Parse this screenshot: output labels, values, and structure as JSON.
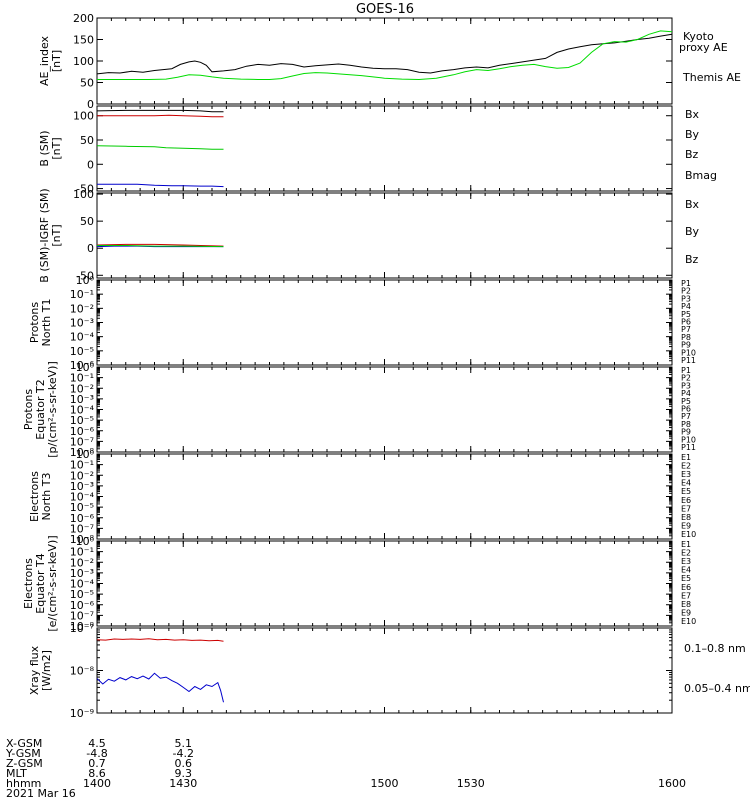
{
  "title": "GOES-16",
  "chart_data": [
    {
      "id": "ae",
      "type": "line",
      "ylabel": [
        "AE_index",
        "[nT]"
      ],
      "yscale": "linear",
      "ylim": [
        0,
        200
      ],
      "yticks": [
        "0",
        "50",
        "100",
        "150",
        "200"
      ],
      "xlim": [
        1400,
        1600
      ],
      "legend": [
        {
          "text": "Kyoto",
          "color": "#00dd00"
        },
        {
          "text": "proxy AE",
          "color": "#00dd00"
        },
        {
          "text": "Themis AE",
          "color": "#000000"
        }
      ],
      "series": [
        {
          "color": "#000000",
          "x": [
            1400,
            1404,
            1408,
            1412,
            1416,
            1420,
            1423,
            1426,
            1429,
            1432,
            1434,
            1436,
            1438,
            1440,
            1444,
            1448,
            1452,
            1456,
            1460,
            1464,
            1468,
            1472,
            1476,
            1480,
            1484,
            1488,
            1492,
            1496,
            1500,
            1504,
            1508,
            1512,
            1516,
            1520,
            1524,
            1528,
            1532,
            1536,
            1540,
            1544,
            1548,
            1552,
            1556,
            1560,
            1564,
            1568,
            1572,
            1576,
            1580,
            1584,
            1588,
            1592,
            1596,
            1600
          ],
          "y": [
            70,
            73,
            72,
            76,
            74,
            78,
            80,
            82,
            92,
            98,
            100,
            97,
            90,
            75,
            77,
            80,
            88,
            92,
            90,
            94,
            92,
            86,
            89,
            91,
            93,
            90,
            86,
            83,
            82,
            82,
            80,
            74,
            72,
            77,
            80,
            84,
            86,
            84,
            90,
            94,
            98,
            102,
            106,
            120,
            128,
            133,
            138,
            140,
            142,
            146,
            150,
            153,
            158,
            162
          ]
        },
        {
          "color": "#00dd00",
          "x": [
            1400,
            1406,
            1412,
            1418,
            1424,
            1428,
            1432,
            1436,
            1440,
            1444,
            1450,
            1456,
            1460,
            1464,
            1468,
            1472,
            1476,
            1480,
            1484,
            1488,
            1492,
            1496,
            1500,
            1506,
            1512,
            1518,
            1524,
            1528,
            1532,
            1536,
            1540,
            1544,
            1548,
            1552,
            1556,
            1560,
            1564,
            1568,
            1572,
            1576,
            1580,
            1584,
            1588,
            1592,
            1596,
            1600
          ],
          "y": [
            57,
            57,
            57,
            57,
            58,
            62,
            68,
            67,
            63,
            60,
            58,
            57,
            57,
            59,
            65,
            71,
            73,
            72,
            70,
            68,
            66,
            63,
            60,
            58,
            57,
            60,
            68,
            75,
            80,
            78,
            82,
            87,
            90,
            92,
            87,
            83,
            85,
            95,
            120,
            140,
            145,
            144,
            150,
            162,
            170,
            168
          ]
        }
      ]
    },
    {
      "id": "bsm",
      "type": "line",
      "ylabel": [
        "B (SM)",
        "[nT]"
      ],
      "yscale": "linear",
      "ylim": [
        -55,
        120
      ],
      "yticks": [
        "-50",
        "0",
        "50",
        "100"
      ],
      "xlim": [
        1400,
        1600
      ],
      "legend": [
        {
          "text": "Bx",
          "color": "#0000cc"
        },
        {
          "text": "By",
          "color": "#00cc00"
        },
        {
          "text": "Bz",
          "color": "#cc0000"
        },
        {
          "text": "Bmag",
          "color": "#000000"
        }
      ],
      "series": [
        {
          "color": "#000000",
          "x": [
            1400,
            1410,
            1420,
            1430,
            1436,
            1440,
            1444
          ],
          "y": [
            110,
            111,
            111,
            111,
            110,
            108,
            108
          ]
        },
        {
          "color": "#cc0000",
          "x": [
            1400,
            1410,
            1420,
            1425,
            1430,
            1436,
            1440,
            1444
          ],
          "y": [
            100,
            100,
            100,
            101,
            100,
            99,
            98,
            98
          ]
        },
        {
          "color": "#00cc00",
          "x": [
            1400,
            1410,
            1420,
            1424,
            1430,
            1436,
            1440,
            1444
          ],
          "y": [
            38,
            37,
            36,
            34,
            33,
            32,
            31,
            31
          ]
        },
        {
          "color": "#0000cc",
          "x": [
            1400,
            1410,
            1414,
            1420,
            1426,
            1430,
            1436,
            1440,
            1444
          ],
          "y": [
            -41,
            -41,
            -41,
            -43,
            -44,
            -44,
            -45,
            -45,
            -46
          ]
        }
      ]
    },
    {
      "id": "bigrf",
      "type": "line",
      "ylabel": [
        "B (SM)-IGRF (SM)",
        "[nT]"
      ],
      "yscale": "linear",
      "ylim": [
        -55,
        102
      ],
      "yticks": [
        "-50",
        "0",
        "50",
        "100"
      ],
      "xlim": [
        1400,
        1600
      ],
      "legend": [
        {
          "text": "Bx",
          "color": "#0000cc"
        },
        {
          "text": "By",
          "color": "#00cc00"
        },
        {
          "text": "Bz",
          "color": "#cc0000"
        }
      ],
      "series": [
        {
          "color": "#cc0000",
          "x": [
            1400,
            1410,
            1420,
            1430,
            1436,
            1444
          ],
          "y": [
            6,
            7,
            7,
            6,
            5,
            4
          ]
        },
        {
          "color": "#0000cc",
          "x": [
            1400,
            1406,
            1414,
            1420,
            1430,
            1444
          ],
          "y": [
            3,
            4,
            4,
            3,
            3,
            3
          ]
        },
        {
          "color": "#00cc00",
          "x": [
            1400,
            1410,
            1420,
            1430,
            1444
          ],
          "y": [
            5,
            5,
            4,
            4,
            3
          ]
        }
      ]
    },
    {
      "id": "prot_t1",
      "type": "line",
      "ylabel": [
        "Protons",
        "North T1"
      ],
      "yscale": "log",
      "ylim": [
        -6,
        0
      ],
      "yticks": [
        "10⁻⁶",
        "10⁻⁵",
        "10⁻⁴",
        "10⁻³",
        "10⁻²",
        "10⁻¹",
        "10⁰"
      ],
      "xlim": [
        1400,
        1600
      ],
      "legend": [
        {
          "text": "P1",
          "color": "#000000"
        },
        {
          "text": "P2",
          "color": "#660088"
        },
        {
          "text": "P3",
          "color": "#0000cc"
        },
        {
          "text": "P4",
          "color": "#0088ff"
        },
        {
          "text": "P5",
          "color": "#00cccc"
        },
        {
          "text": "P6",
          "color": "#00bb00"
        },
        {
          "text": "P7",
          "color": "#dddd00"
        },
        {
          "text": "P8",
          "color": "#ffcc00"
        },
        {
          "text": "P9",
          "color": "#ff8800"
        },
        {
          "text": "P10",
          "color": "#ee0000"
        },
        {
          "text": "P11",
          "color": "#aa0000"
        }
      ],
      "series": []
    },
    {
      "id": "prot_t2",
      "type": "line",
      "ylabel": [
        "Protons",
        "Equator T2",
        "[p/(cm²-s-sr-keV)]"
      ],
      "yscale": "log",
      "ylim": [
        -8,
        0
      ],
      "yticks": [
        "10⁻⁸",
        "10⁻⁷",
        "10⁻⁶",
        "10⁻⁵",
        "10⁻⁴",
        "10⁻³",
        "10⁻²",
        "10⁻¹",
        "10⁰"
      ],
      "xlim": [
        1400,
        1600
      ],
      "legend": [
        {
          "text": "P1",
          "color": "#000000"
        },
        {
          "text": "P2",
          "color": "#660088"
        },
        {
          "text": "P3",
          "color": "#0000cc"
        },
        {
          "text": "P4",
          "color": "#0088ff"
        },
        {
          "text": "P5",
          "color": "#00cccc"
        },
        {
          "text": "P6",
          "color": "#00bb00"
        },
        {
          "text": "P7",
          "color": "#dddd00"
        },
        {
          "text": "P8",
          "color": "#ffcc00"
        },
        {
          "text": "P9",
          "color": "#ff8800"
        },
        {
          "text": "P10",
          "color": "#ee0000"
        },
        {
          "text": "P11",
          "color": "#aa0000"
        }
      ],
      "series": []
    },
    {
      "id": "elec_t3",
      "type": "line",
      "ylabel": [
        "Electrons",
        "North T3"
      ],
      "yscale": "log",
      "ylim": [
        -8,
        0
      ],
      "yticks": [
        "10⁻⁸",
        "10⁻⁷",
        "10⁻⁶",
        "10⁻⁵",
        "10⁻⁴",
        "10⁻³",
        "10⁻²",
        "10⁻¹",
        "10⁰"
      ],
      "xlim": [
        1400,
        1600
      ],
      "legend": [
        {
          "text": "E1",
          "color": "#000000"
        },
        {
          "text": "E2",
          "color": "#660088"
        },
        {
          "text": "E3",
          "color": "#0000cc"
        },
        {
          "text": "E4",
          "color": "#0088ff"
        },
        {
          "text": "E5",
          "color": "#00cccc"
        },
        {
          "text": "E6",
          "color": "#00bb00"
        },
        {
          "text": "E7",
          "color": "#dddd00"
        },
        {
          "text": "E8",
          "color": "#ff8800"
        },
        {
          "text": "E9",
          "color": "#ee0000"
        },
        {
          "text": "E10",
          "color": "#aa0000"
        }
      ],
      "series": []
    },
    {
      "id": "elec_t4",
      "type": "line",
      "ylabel": [
        "Electrons",
        "Equator T4",
        "[e/(cm²-s-sr-keV)]"
      ],
      "yscale": "log",
      "ylim": [
        -8,
        0
      ],
      "yticks": [
        "10⁻⁸",
        "10⁻⁷",
        "10⁻⁶",
        "10⁻⁵",
        "10⁻⁴",
        "10⁻³",
        "10⁻²",
        "10⁻¹",
        "10⁰"
      ],
      "xlim": [
        1400,
        1600
      ],
      "legend": [
        {
          "text": "E1",
          "color": "#000000"
        },
        {
          "text": "E2",
          "color": "#660088"
        },
        {
          "text": "E3",
          "color": "#0000cc"
        },
        {
          "text": "E4",
          "color": "#0088ff"
        },
        {
          "text": "E5",
          "color": "#00cccc"
        },
        {
          "text": "E6",
          "color": "#00bb00"
        },
        {
          "text": "E7",
          "color": "#dddd00"
        },
        {
          "text": "E8",
          "color": "#ff8800"
        },
        {
          "text": "E9",
          "color": "#ee0000"
        },
        {
          "text": "E10",
          "color": "#aa0000"
        }
      ],
      "series": []
    },
    {
      "id": "xray",
      "type": "line",
      "ylabel": [
        "Xray flux",
        "[W/m2]"
      ],
      "yscale": "log",
      "ylim": [
        -9,
        -7
      ],
      "yticks": [
        "10⁻⁹",
        "10⁻⁸",
        "10⁻⁷"
      ],
      "xlim": [
        1400,
        1600
      ],
      "legend": [
        {
          "text": "0.1–0.8 nm",
          "color": "#cc0000"
        },
        {
          "text": "0.05–0.4 nm",
          "color": "#0000cc"
        }
      ],
      "series": [
        {
          "color": "#cc0000",
          "x": [
            1400,
            1403,
            1406,
            1409,
            1412,
            1415,
            1418,
            1421,
            1424,
            1427,
            1430,
            1433,
            1436,
            1439,
            1442,
            1444
          ],
          "y": [
            5.3e-08,
            5.2e-08,
            5.5e-08,
            5.4e-08,
            5.5e-08,
            5.4e-08,
            5.6e-08,
            5.3e-08,
            5.4e-08,
            5.2e-08,
            5.3e-08,
            5.1e-08,
            5.2e-08,
            5e-08,
            5.1e-08,
            4.9e-08
          ]
        },
        {
          "color": "#0000cc",
          "x": [
            1400,
            1402,
            1404,
            1406,
            1408,
            1410,
            1412,
            1414,
            1416,
            1418,
            1420,
            1422,
            1424,
            1426,
            1428,
            1430,
            1432,
            1434,
            1436,
            1438,
            1440,
            1442,
            1443,
            1444
          ],
          "y": [
            6.5e-09,
            4.8e-09,
            6.2e-09,
            5.6e-09,
            6.8e-09,
            6e-09,
            7.2e-09,
            6.4e-09,
            7.4e-09,
            6.3e-09,
            8.6e-09,
            6.6e-09,
            7e-09,
            5.8e-09,
            5e-09,
            4e-09,
            3.2e-09,
            4.2e-09,
            3.6e-09,
            4.6e-09,
            4.2e-09,
            5.2e-09,
            3.4e-09,
            1.8e-09
          ]
        }
      ]
    }
  ],
  "xaxis": {
    "ticks": [
      {
        "value": 1400,
        "label": "1400"
      },
      {
        "value": 1430,
        "label": "1430"
      },
      {
        "value": 1500,
        "label": "1500"
      },
      {
        "value": 1530,
        "label": "1530"
      },
      {
        "value": 1600,
        "label": "1600"
      }
    ]
  },
  "orbit": {
    "rows": [
      {
        "label": "X-GSM",
        "values": [
          {
            "x": 1400,
            "text": "4.5"
          },
          {
            "x": 1430,
            "text": "5.1"
          }
        ]
      },
      {
        "label": "Y-GSM",
        "values": [
          {
            "x": 1400,
            "text": "-4.8"
          },
          {
            "x": 1430,
            "text": "-4.2"
          }
        ]
      },
      {
        "label": "Z-GSM",
        "values": [
          {
            "x": 1400,
            "text": "0.7"
          },
          {
            "x": 1430,
            "text": "0.6"
          }
        ]
      },
      {
        "label": "MLT",
        "values": [
          {
            "x": 1400,
            "text": "8.6"
          },
          {
            "x": 1430,
            "text": "9.3"
          }
        ]
      },
      {
        "label": "hhmm",
        "values": [
          {
            "x": 1400,
            "text": "1400"
          },
          {
            "x": 1430,
            "text": "1430"
          },
          {
            "x": 1500,
            "text": "1500"
          },
          {
            "x": 1530,
            "text": "1530"
          },
          {
            "x": 1600,
            "text": "1600"
          }
        ]
      }
    ],
    "date": "2021 Mar 16"
  }
}
